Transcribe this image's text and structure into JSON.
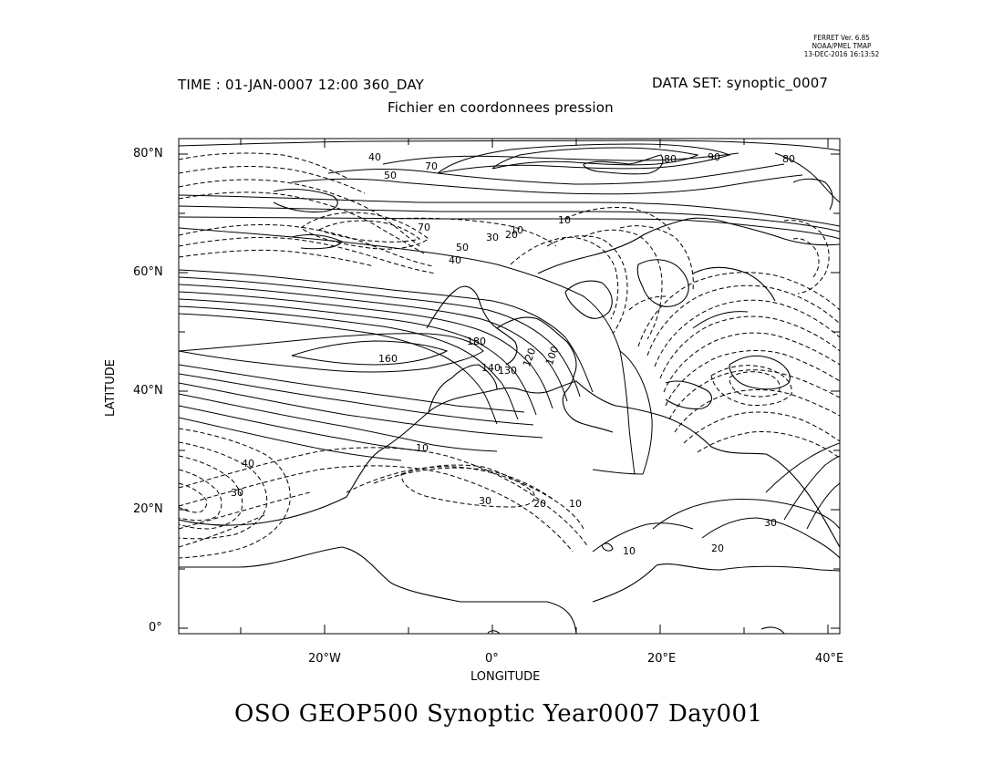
{
  "ferret_stamp": {
    "line1": "FERRET Ver. 6.85",
    "line2": "NOAA/PMEL TMAP",
    "line3": "13-DEC-2016 16:13:52"
  },
  "header": {
    "time": "TIME : 01-JAN-0007 12:00 360_DAY",
    "dataset": "DATA SET: synoptic_0007",
    "subtitle": "Fichier en coordonnees pression"
  },
  "axes": {
    "ylabel": "LATITUDE",
    "xlabel": "LONGITUDE",
    "yticks": [
      "80°N",
      "60°N",
      "40°N",
      "20°N",
      "0°"
    ],
    "xticks": [
      "20°W",
      "0°",
      "20°E",
      "40°E"
    ]
  },
  "bottom_title": "OSO GEOP500 Synoptic Year0007 Day001",
  "contour_labels": {
    "l160": "160",
    "l180": "180",
    "l140": "140",
    "l130": "130",
    "l120": "120",
    "l100": "100",
    "l90": "90",
    "l80a": "80",
    "l80b": "80",
    "l70a": "70",
    "l70b": "70",
    "l50a": "50",
    "l50b": "50",
    "l40a": "40",
    "l40b": "40",
    "l40c": "40",
    "l30a": "30",
    "l30b": "30",
    "l30c": "30",
    "l30d": "30",
    "l20a": "20",
    "l20b": "20",
    "l20c": "20",
    "l10a": "10",
    "l10b": "10",
    "l10c": "10",
    "l10d": "10",
    "l10e": "10"
  }
}
